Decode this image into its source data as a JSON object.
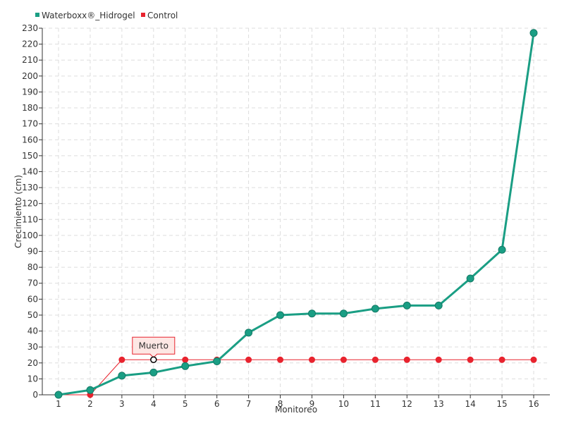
{
  "chart_data": {
    "type": "line",
    "title": "",
    "xlabel": "Monitoreo",
    "ylabel": "Crecimiento (cm)",
    "categories": [
      "1",
      "2",
      "3",
      "4",
      "5",
      "6",
      "7",
      "8",
      "9",
      "10",
      "11",
      "12",
      "13",
      "14",
      "15",
      "16"
    ],
    "ylim": [
      0,
      230
    ],
    "yticks": [
      0,
      10,
      20,
      30,
      40,
      50,
      60,
      70,
      80,
      90,
      100,
      110,
      120,
      130,
      140,
      150,
      160,
      170,
      180,
      190,
      200,
      210,
      220,
      230
    ],
    "grid": true,
    "legend_position": "top-left",
    "series": [
      {
        "name": "Waterboxx®_Hidrogel",
        "color": "#1a9e84",
        "values": [
          0,
          3,
          12,
          14,
          18,
          21,
          39,
          50,
          51,
          51,
          54,
          56,
          56,
          73,
          91,
          227
        ]
      },
      {
        "name": "Control",
        "color": "#e8232e",
        "values": [
          0,
          0,
          22,
          22,
          22,
          22,
          22,
          22,
          22,
          22,
          22,
          22,
          22,
          22,
          22,
          22
        ]
      }
    ],
    "annotations": [
      {
        "text": "Muerto",
        "series": "Control",
        "category": "4",
        "value": 22
      }
    ]
  }
}
